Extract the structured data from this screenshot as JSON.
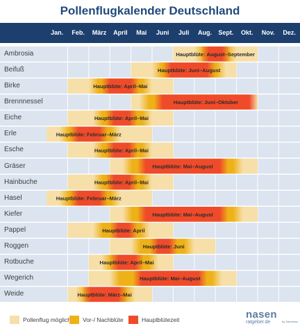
{
  "title": "Pollenflugkalender Deutschland",
  "colors": {
    "header": "#1c3f6e",
    "row_blue": "#dbe4ef",
    "row_light": "#eaf0f6",
    "possible": "#f7dfa9",
    "pre_post": "#eeb117",
    "main": "#ef4b2b"
  },
  "legend": {
    "possible": "Pollenflug möglich",
    "pre_post": "Vor-/ Nachblüte",
    "main": "Hauptblütezeit"
  },
  "logo": {
    "line1": "nasen",
    "line2": "ratgeber.de",
    "tag": "by Sanhelios"
  },
  "chart_data": {
    "type": "heatmap",
    "title": "Pollenflugkalender Deutschland",
    "months": [
      "Jan.",
      "Feb.",
      "März",
      "April",
      "Mai",
      "Juni",
      "Juli",
      "Aug.",
      "Sept.",
      "Okt.",
      "Nov.",
      "Dez."
    ],
    "month_positions": "start of month = 0, month index 0..12",
    "rows": [
      {
        "plant": "Ambrosia",
        "possible": [
          6,
          10
        ],
        "pre_post": [
          7,
          9
        ],
        "main": [
          7.3,
          8.7
        ],
        "label": "Hauptblüte: August–September"
      },
      {
        "plant": "Beifuß",
        "possible": [
          4,
          9
        ],
        "pre_post": [
          5,
          8.5
        ],
        "main": [
          5.5,
          8
        ],
        "label": "Hauptblüte: Juni–August"
      },
      {
        "plant": "Birke",
        "possible": [
          1,
          6
        ],
        "pre_post": [
          2,
          5
        ],
        "main": [
          2.6,
          4.4
        ],
        "label": "Hauptblüte: April–Mai"
      },
      {
        "plant": "Brennnessel",
        "possible": [
          4,
          10
        ],
        "pre_post": [
          4.4,
          9.7
        ],
        "main": [
          5.1,
          10
        ],
        "label": "Hauptblüte: Juni–Oktober"
      },
      {
        "plant": "Eiche",
        "possible": [
          1,
          6
        ],
        "pre_post": [
          2.2,
          5
        ],
        "main": [
          2.8,
          4.3
        ],
        "label": "Hauptblüte: April–Mai"
      },
      {
        "plant": "Erle",
        "possible": [
          0,
          5
        ],
        "pre_post": [
          0.6,
          3.5
        ],
        "main": [
          1.1,
          2.9
        ],
        "label": "Hauptblüte: Februar–März"
      },
      {
        "plant": "Esche",
        "possible": [
          1,
          6
        ],
        "pre_post": [
          2.2,
          5
        ],
        "main": [
          2.8,
          4.3
        ],
        "label": "Hauptblüte: April–Mai"
      },
      {
        "plant": "Gräser",
        "possible": [
          3,
          10
        ],
        "pre_post": [
          3.6,
          9.3
        ],
        "main": [
          4.3,
          8.6
        ],
        "label": "Hauptblüte: Mai–August"
      },
      {
        "plant": "Hainbuche",
        "possible": [
          1,
          6
        ],
        "pre_post": [
          2.2,
          5
        ],
        "main": [
          2.8,
          4.3
        ],
        "label": "Hauptblüte: April–Mai"
      },
      {
        "plant": "Hasel",
        "possible": [
          0,
          5
        ],
        "pre_post": [
          0.6,
          3.5
        ],
        "main": [
          1.1,
          2.9
        ],
        "label": "Hauptblüte: Februar–März"
      },
      {
        "plant": "Kiefer",
        "possible": [
          3,
          10
        ],
        "pre_post": [
          3.6,
          9.3
        ],
        "main": [
          4.3,
          8.6
        ],
        "label": "Hauptblüte: Mai–August"
      },
      {
        "plant": "Pappel",
        "possible": [
          1,
          6
        ],
        "pre_post": [
          2.2,
          4.9
        ],
        "main": [
          3,
          4.3
        ],
        "label": "Hauptblüte: April"
      },
      {
        "plant": "Roggen",
        "possible": [
          3,
          8
        ],
        "pre_post": [
          4,
          7
        ],
        "main": [
          4.9,
          6.2
        ],
        "label": "Hauptblüte: Juni"
      },
      {
        "plant": "Rotbuche",
        "possible": [
          2,
          6
        ],
        "pre_post": [
          2.6,
          5.3
        ],
        "main": [
          3,
          4.6
        ],
        "label": "Hauptblüte: April–Mai"
      },
      {
        "plant": "Wegerich",
        "possible": [
          2,
          9
        ],
        "pre_post": [
          3,
          8.3
        ],
        "main": [
          4.1,
          7.6
        ],
        "label": "Hauptblüte: Mai–August"
      },
      {
        "plant": "Weide",
        "possible": [
          1,
          5
        ],
        "pre_post": [
          1.4,
          4.2
        ],
        "main": [
          1.7,
          3.8
        ],
        "label": "Hauptblüte: März–Mai"
      }
    ]
  }
}
